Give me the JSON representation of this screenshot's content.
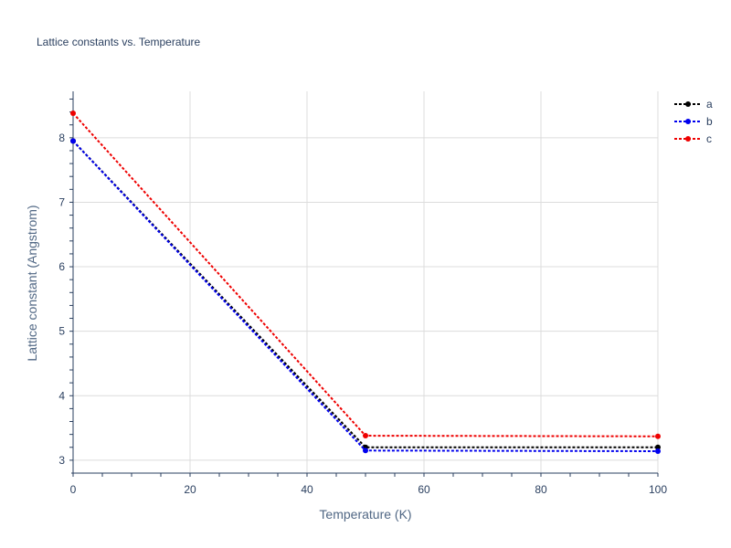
{
  "chart_data": {
    "type": "line",
    "title": "Lattice constants vs. Temperature",
    "xlabel": "Temperature (K)",
    "ylabel": "Lattice constant (Angstrom)",
    "xlim": [
      0,
      100
    ],
    "ylim": [
      2.8,
      8.72
    ],
    "xticks": [
      0,
      20,
      40,
      60,
      80,
      100
    ],
    "yticks": [
      3,
      4,
      5,
      6,
      7,
      8
    ],
    "grid": true,
    "legend_position": "top-right",
    "series": [
      {
        "name": "a",
        "color": "#000000",
        "x": [
          0,
          50,
          100
        ],
        "y": [
          7.95,
          3.2,
          3.2
        ]
      },
      {
        "name": "b",
        "color": "#0000ee",
        "x": [
          0,
          50,
          100
        ],
        "y": [
          7.95,
          3.15,
          3.14
        ]
      },
      {
        "name": "c",
        "color": "#ee0000",
        "x": [
          0,
          50,
          100
        ],
        "y": [
          8.38,
          3.38,
          3.37
        ]
      }
    ]
  }
}
